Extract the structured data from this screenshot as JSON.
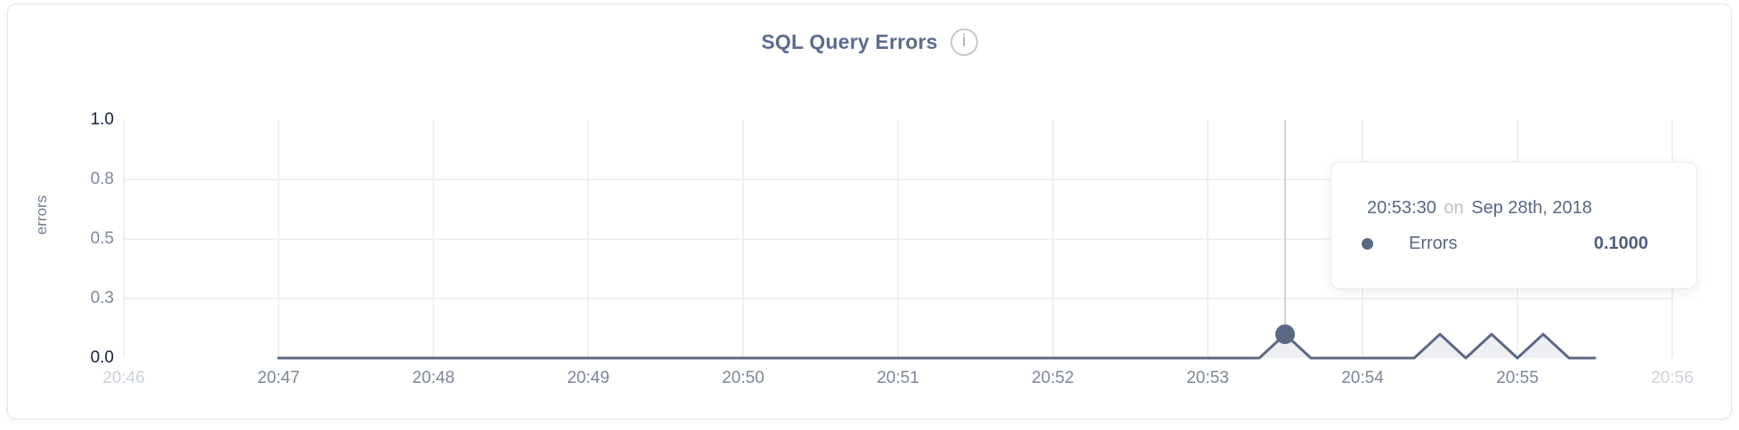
{
  "header": {
    "title": "SQL Query Errors",
    "info_glyph": "i"
  },
  "tooltip": {
    "time": "20:53:30",
    "connector": "on",
    "date": "Sep 28th, 2018",
    "series": "Errors",
    "value": "0.1000"
  },
  "colors": {
    "title": "#5a6b8c",
    "line": "#5c6983",
    "dot": "#5c6983",
    "area": "#edeff5",
    "grid": "#ececee",
    "crosshair": "#d2d3d6",
    "tick": "#7c8599",
    "tick_muted": "#ccd1dc",
    "tick_emphasis": "#16213a"
  },
  "chart_data": {
    "type": "line",
    "title": "SQL Query Errors",
    "xlabel": "",
    "ylabel": "errors",
    "x_range": [
      "20:46",
      "20:56"
    ],
    "ylim": [
      0,
      1
    ],
    "grid": true,
    "legend_position": "tooltip-only",
    "x_ticks": [
      {
        "label": "20:46",
        "muted": true
      },
      {
        "label": "20:47",
        "muted": false
      },
      {
        "label": "20:48",
        "muted": false
      },
      {
        "label": "20:49",
        "muted": false
      },
      {
        "label": "20:50",
        "muted": false
      },
      {
        "label": "20:51",
        "muted": false
      },
      {
        "label": "20:52",
        "muted": false
      },
      {
        "label": "20:53",
        "muted": false
      },
      {
        "label": "20:54",
        "muted": false
      },
      {
        "label": "20:55",
        "muted": false
      },
      {
        "label": "20:56",
        "muted": true
      }
    ],
    "y_ticks": [
      {
        "label": "1.0",
        "value": 1.0,
        "emphasis": true,
        "grid": false
      },
      {
        "label": "0.8",
        "value": 0.75,
        "emphasis": false,
        "grid": true
      },
      {
        "label": "0.5",
        "value": 0.5,
        "emphasis": false,
        "grid": true
      },
      {
        "label": "0.3",
        "value": 0.25,
        "emphasis": false,
        "grid": true
      },
      {
        "label": "0.0",
        "value": 0.0,
        "emphasis": true,
        "grid": false
      }
    ],
    "series": [
      {
        "name": "Errors",
        "points": [
          {
            "t": "20:47:00",
            "v": 0
          },
          {
            "t": "20:53:20",
            "v": 0
          },
          {
            "t": "20:53:30",
            "v": 0.1
          },
          {
            "t": "20:53:40",
            "v": 0
          },
          {
            "t": "20:54:20",
            "v": 0
          },
          {
            "t": "20:54:30",
            "v": 0.1
          },
          {
            "t": "20:54:40",
            "v": 0
          },
          {
            "t": "20:54:50",
            "v": 0.1
          },
          {
            "t": "20:55:00",
            "v": 0
          },
          {
            "t": "20:55:10",
            "v": 0.1
          },
          {
            "t": "20:55:20",
            "v": 0
          },
          {
            "t": "20:55:30",
            "v": 0
          }
        ]
      }
    ],
    "hover_point": {
      "t": "20:53:30",
      "v": 0.1,
      "series": "Errors",
      "value_label": "0.1000"
    }
  }
}
